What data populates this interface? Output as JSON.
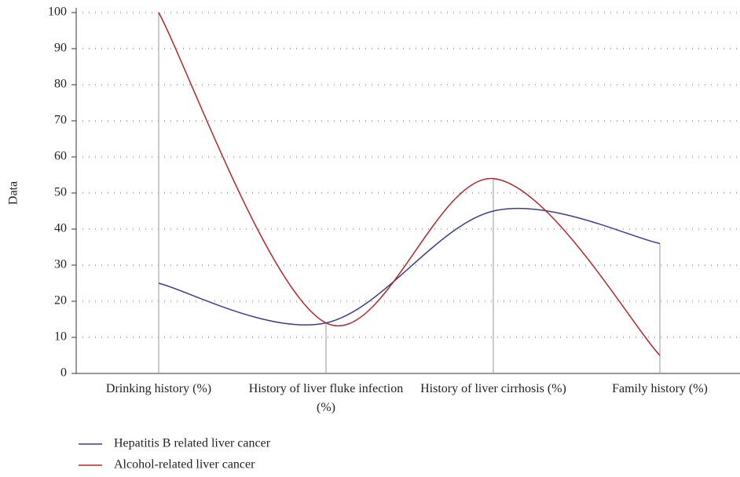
{
  "chart_data": {
    "type": "line",
    "y_label": "Data",
    "categories": [
      "Drinking history (%)",
      "History of liver fluke infection (%)",
      "History of liver cirrhosis (%)",
      "Family history (%)"
    ],
    "series": [
      {
        "name": "Hepatitis B related liver cancer",
        "color": "#3a3f8c",
        "values": [
          25,
          14,
          45,
          36
        ]
      },
      {
        "name": "Alcohol-related liver cancer",
        "color": "#b3282d",
        "values": [
          100,
          14,
          54,
          5
        ]
      }
    ],
    "ylim": [
      0,
      100
    ],
    "yticks": [
      0,
      10,
      20,
      30,
      40,
      50,
      60,
      70,
      80,
      90,
      100
    ],
    "grid": true
  }
}
